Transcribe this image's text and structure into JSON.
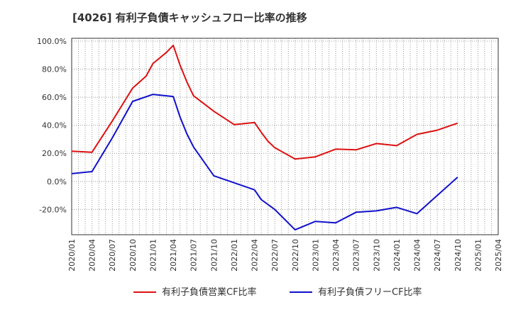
{
  "chart_data": {
    "type": "line",
    "title": "[4026]  有利子負債キャッシュフロー比率の推移",
    "xlabel": "",
    "ylabel": "",
    "x_ticks": [
      "2020/01",
      "2020/04",
      "2020/07",
      "2020/10",
      "2021/01",
      "2021/04",
      "2021/07",
      "2021/10",
      "2022/01",
      "2022/04",
      "2022/07",
      "2022/10",
      "2023/01",
      "2023/04",
      "2023/07",
      "2023/10",
      "2024/01",
      "2024/04",
      "2024/07",
      "2024/10",
      "2025/01",
      "2025/04"
    ],
    "y_ticks": [
      "100.0%",
      "80.0%",
      "60.0%",
      "40.0%",
      "20.0%",
      "0.0%",
      "-20.0%"
    ],
    "y_tick_values": [
      100,
      80,
      60,
      40,
      20,
      0,
      -20
    ],
    "ylim": [
      -38,
      102
    ],
    "xlim": [
      "2020/01",
      "2025/04"
    ],
    "grid": true,
    "legend_position": "bottom",
    "series": [
      {
        "name": "有利子負債営業CF比率",
        "color": "#dd1111",
        "points": [
          [
            "2020/01",
            21.5
          ],
          [
            "2020/04",
            20.8
          ],
          [
            "2020/07",
            43.0
          ],
          [
            "2020/10",
            66.5
          ],
          [
            "2020/12",
            75.0
          ],
          [
            "2021/01",
            84.0
          ],
          [
            "2021/03",
            92.0
          ],
          [
            "2021/04",
            97.0
          ],
          [
            "2021/05",
            83.0
          ],
          [
            "2021/06",
            71.0
          ],
          [
            "2021/07",
            61.0
          ],
          [
            "2021/10",
            50.0
          ],
          [
            "2022/01",
            40.5
          ],
          [
            "2022/04",
            42.0
          ],
          [
            "2022/05",
            35.0
          ],
          [
            "2022/06",
            28.5
          ],
          [
            "2022/07",
            24.0
          ],
          [
            "2022/10",
            16.0
          ],
          [
            "2023/01",
            17.5
          ],
          [
            "2023/04",
            23.0
          ],
          [
            "2023/07",
            22.5
          ],
          [
            "2023/10",
            27.0
          ],
          [
            "2024/01",
            25.5
          ],
          [
            "2024/04",
            33.5
          ],
          [
            "2024/07",
            36.5
          ],
          [
            "2024/10",
            41.5
          ]
        ]
      },
      {
        "name": "有利子負債フリーCF比率",
        "color": "#1111cc",
        "points": [
          [
            "2020/01",
            5.5
          ],
          [
            "2020/04",
            7.0
          ],
          [
            "2020/07",
            31.0
          ],
          [
            "2020/10",
            57.0
          ],
          [
            "2021/01",
            62.0
          ],
          [
            "2021/04",
            60.5
          ],
          [
            "2021/05",
            46.0
          ],
          [
            "2021/06",
            34.0
          ],
          [
            "2021/07",
            24.5
          ],
          [
            "2021/10",
            4.0
          ],
          [
            "2022/01",
            -1.0
          ],
          [
            "2022/04",
            -6.0
          ],
          [
            "2022/05",
            -13.0
          ],
          [
            "2022/07",
            -20.0
          ],
          [
            "2022/10",
            -34.5
          ],
          [
            "2023/01",
            -28.5
          ],
          [
            "2023/04",
            -29.5
          ],
          [
            "2023/07",
            -22.0
          ],
          [
            "2023/10",
            -21.0
          ],
          [
            "2024/01",
            -18.5
          ],
          [
            "2024/04",
            -23.0
          ],
          [
            "2024/07",
            -10.0
          ],
          [
            "2024/10",
            3.0
          ]
        ]
      }
    ]
  }
}
